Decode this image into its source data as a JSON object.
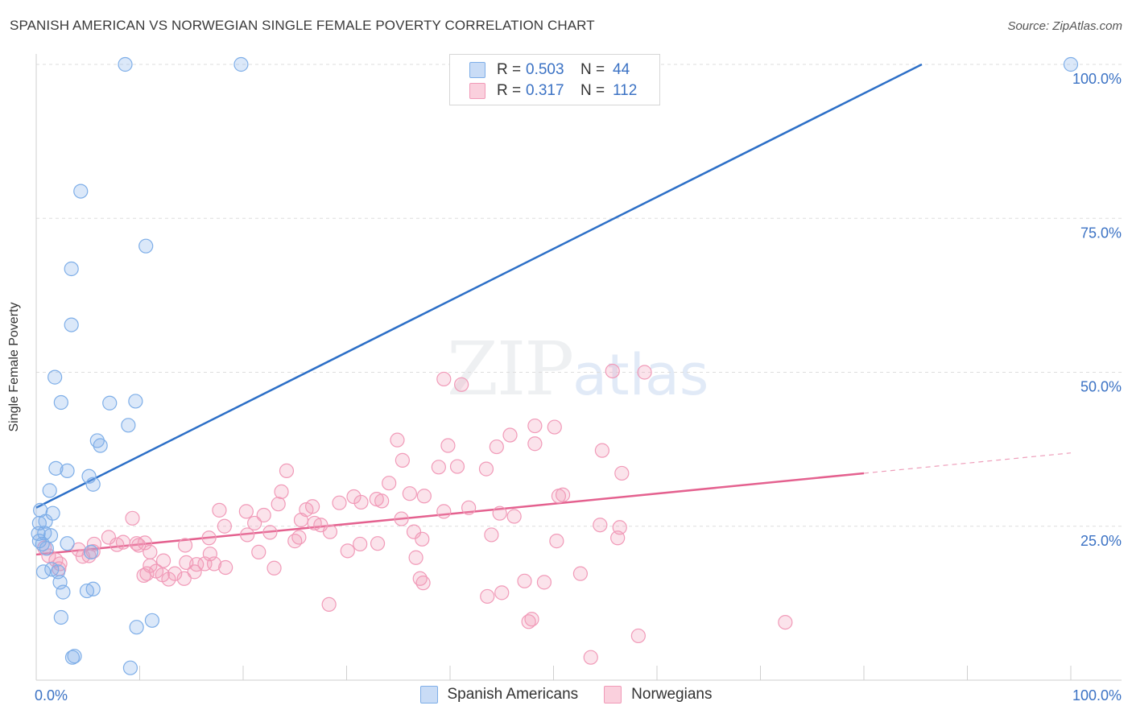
{
  "header": {
    "title": "SPANISH AMERICAN VS NORWEGIAN SINGLE FEMALE POVERTY CORRELATION CHART",
    "source": "Source: ZipAtlas.com"
  },
  "watermark": {
    "zip": "ZIP",
    "atlas": "atlas"
  },
  "stats": [
    {
      "r_label": "R =",
      "r_value": "0.503",
      "n_label": "N =",
      "n_value": "44",
      "color": "#a9c6ee"
    },
    {
      "r_label": "R =",
      "r_value": "0.317",
      "n_label": "N =",
      "n_value": "112",
      "color": "#f5b8cb"
    }
  ],
  "legend": [
    {
      "label": "Spanish Americans",
      "color": "#a9c6ee"
    },
    {
      "label": "Norwegians",
      "color": "#f5b8cb"
    }
  ],
  "chart_data": {
    "type": "scatter",
    "ylabel": "Single Female Poverty",
    "xlim": [
      0,
      100
    ],
    "ylim": [
      0,
      100
    ],
    "x_tick_labels": [
      {
        "value": 0,
        "label": "0.0%"
      },
      {
        "value": 100,
        "label": "100.0%"
      }
    ],
    "y_tick_labels": [
      {
        "value": 25,
        "label": "25.0%"
      },
      {
        "value": 50,
        "label": "50.0%"
      },
      {
        "value": 75,
        "label": "75.0%"
      },
      {
        "value": 100,
        "label": "100.0%"
      }
    ],
    "grid": true,
    "series": [
      {
        "name": "Spanish Americans",
        "color": "#7eaee8",
        "line_color": "#2c6fc7",
        "trend": {
          "x1": 0,
          "y1": 28.0,
          "x2": 85.6,
          "y2": 100
        },
        "points": [
          [
            8.6,
            100
          ],
          [
            19.8,
            100
          ],
          [
            100,
            100
          ],
          [
            4.3,
            79.4
          ],
          [
            10.6,
            70.5
          ],
          [
            3.4,
            66.8
          ],
          [
            3.4,
            57.7
          ],
          [
            1.8,
            49.2
          ],
          [
            2.4,
            45.1
          ],
          [
            7.1,
            45.0
          ],
          [
            9.6,
            45.3
          ],
          [
            8.9,
            41.4
          ],
          [
            5.9,
            38.9
          ],
          [
            6.2,
            38.1
          ],
          [
            1.9,
            34.4
          ],
          [
            3.0,
            34.0
          ],
          [
            5.1,
            33.1
          ],
          [
            5.5,
            31.8
          ],
          [
            1.3,
            30.8
          ],
          [
            1.6,
            27.1
          ],
          [
            0.4,
            27.6
          ],
          [
            0.9,
            25.8
          ],
          [
            0.3,
            25.5
          ],
          [
            0.2,
            23.8
          ],
          [
            0.8,
            23.9
          ],
          [
            1.4,
            23.5
          ],
          [
            0.3,
            22.6
          ],
          [
            0.6,
            22.1
          ],
          [
            1.0,
            21.4
          ],
          [
            3.0,
            22.2
          ],
          [
            5.3,
            20.8
          ],
          [
            1.5,
            18.0
          ],
          [
            0.7,
            17.6
          ],
          [
            2.1,
            17.6
          ],
          [
            2.3,
            15.9
          ],
          [
            2.6,
            14.3
          ],
          [
            4.9,
            14.5
          ],
          [
            5.5,
            14.8
          ],
          [
            2.4,
            10.2
          ],
          [
            11.2,
            9.7
          ],
          [
            9.7,
            8.6
          ],
          [
            3.5,
            3.7
          ],
          [
            3.7,
            3.9
          ],
          [
            9.1,
            2.0
          ]
        ]
      },
      {
        "name": "Norwegians",
        "color": "#f19ab8",
        "line_color": "#e4618f",
        "trend": {
          "x1": 0,
          "y1": 20.4,
          "x2": 80.0,
          "y2": 33.6
        },
        "trend_dashed": {
          "x1": 80.0,
          "y1": 33.6,
          "x2": 100,
          "y2": 36.9
        },
        "points": [
          [
            39.4,
            48.9
          ],
          [
            41.1,
            48.0
          ],
          [
            55.7,
            50.2
          ],
          [
            58.8,
            50.0
          ],
          [
            50.1,
            41.1
          ],
          [
            48.2,
            41.3
          ],
          [
            45.8,
            39.8
          ],
          [
            34.9,
            39.0
          ],
          [
            39.8,
            38.1
          ],
          [
            44.5,
            37.9
          ],
          [
            48.2,
            38.4
          ],
          [
            54.7,
            37.3
          ],
          [
            35.4,
            35.7
          ],
          [
            38.9,
            34.6
          ],
          [
            40.7,
            34.7
          ],
          [
            43.5,
            34.3
          ],
          [
            56.6,
            33.6
          ],
          [
            24.2,
            34.0
          ],
          [
            34.1,
            32.0
          ],
          [
            23.7,
            30.6
          ],
          [
            36.1,
            30.3
          ],
          [
            37.5,
            29.9
          ],
          [
            50.5,
            29.9
          ],
          [
            50.9,
            30.1
          ],
          [
            30.7,
            29.8
          ],
          [
            32.9,
            29.4
          ],
          [
            33.4,
            29.1
          ],
          [
            29.3,
            28.8
          ],
          [
            31.4,
            28.9
          ],
          [
            23.4,
            28.6
          ],
          [
            26.7,
            28.2
          ],
          [
            26.1,
            27.7
          ],
          [
            41.8,
            28.0
          ],
          [
            39.4,
            27.4
          ],
          [
            17.7,
            27.6
          ],
          [
            20.3,
            27.4
          ],
          [
            22.0,
            26.8
          ],
          [
            9.3,
            26.3
          ],
          [
            46.2,
            26.6
          ],
          [
            25.6,
            26.0
          ],
          [
            21.1,
            25.5
          ],
          [
            26.9,
            25.5
          ],
          [
            27.5,
            25.2
          ],
          [
            18.2,
            25.0
          ],
          [
            54.5,
            25.2
          ],
          [
            56.4,
            24.8
          ],
          [
            22.6,
            24.0
          ],
          [
            20.4,
            23.6
          ],
          [
            28.4,
            24.1
          ],
          [
            36.5,
            24.1
          ],
          [
            44.0,
            23.6
          ],
          [
            56.2,
            23.1
          ],
          [
            16.7,
            23.1
          ],
          [
            25.4,
            23.2
          ],
          [
            25.0,
            22.6
          ],
          [
            37.3,
            22.9
          ],
          [
            7.0,
            23.2
          ],
          [
            8.4,
            22.4
          ],
          [
            9.7,
            22.2
          ],
          [
            10.5,
            22.3
          ],
          [
            5.6,
            22.1
          ],
          [
            7.8,
            22.0
          ],
          [
            14.4,
            21.9
          ],
          [
            31.3,
            22.1
          ],
          [
            33.0,
            22.2
          ],
          [
            50.3,
            22.6
          ],
          [
            4.1,
            21.2
          ],
          [
            5.5,
            20.9
          ],
          [
            11.0,
            20.8
          ],
          [
            16.8,
            20.5
          ],
          [
            21.5,
            20.8
          ],
          [
            30.1,
            21.0
          ],
          [
            36.7,
            19.9
          ],
          [
            0.8,
            21.5
          ],
          [
            1.2,
            20.2
          ],
          [
            4.5,
            20.1
          ],
          [
            5.1,
            20.2
          ],
          [
            1.9,
            19.5
          ],
          [
            2.3,
            18.9
          ],
          [
            12.3,
            19.4
          ],
          [
            14.5,
            19.1
          ],
          [
            15.5,
            18.8
          ],
          [
            16.3,
            18.9
          ],
          [
            17.2,
            18.9
          ],
          [
            11.0,
            18.6
          ],
          [
            18.3,
            18.3
          ],
          [
            2.2,
            18.1
          ],
          [
            15.3,
            17.6
          ],
          [
            10.4,
            17.0
          ],
          [
            10.7,
            17.3
          ],
          [
            11.6,
            17.7
          ],
          [
            13.4,
            17.3
          ],
          [
            12.8,
            16.4
          ],
          [
            52.6,
            17.3
          ],
          [
            47.2,
            16.1
          ],
          [
            37.1,
            16.5
          ],
          [
            49.1,
            15.9
          ],
          [
            45.0,
            14.2
          ],
          [
            43.6,
            13.6
          ],
          [
            28.3,
            12.3
          ],
          [
            37.4,
            15.8
          ],
          [
            47.9,
            9.9
          ],
          [
            47.6,
            9.5
          ],
          [
            72.4,
            9.4
          ],
          [
            58.2,
            7.2
          ],
          [
            53.6,
            3.7
          ],
          [
            9.9,
            21.9
          ],
          [
            12.2,
            17.1
          ],
          [
            14.3,
            16.5
          ],
          [
            23.0,
            18.2
          ],
          [
            35.3,
            26.2
          ],
          [
            44.8,
            27.1
          ]
        ]
      }
    ]
  }
}
